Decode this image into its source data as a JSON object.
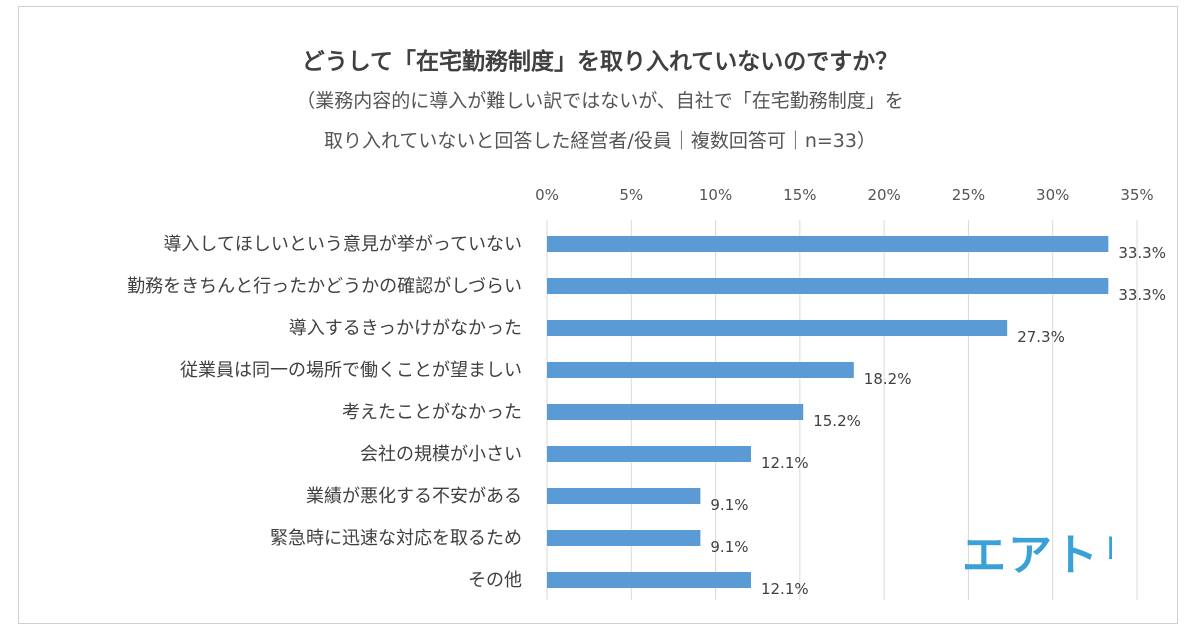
{
  "title": "どうして「在宅勤務制度」を取り入れていないのですか？",
  "subtitle_line1": "（業務内容的に導入が難しい訳ではないが、自社で「在宅勤務制度」を",
  "subtitle_line2": "取り入れていないと回答した経営者/役員｜複数回答可｜n=33）",
  "logo_text": "エアトリ",
  "colors": {
    "bar": "#5b9bd5",
    "grid": "#d9d9d9"
  },
  "chart_data": {
    "type": "bar",
    "orientation": "horizontal",
    "categories": [
      "導入してほしいという意見が挙がっていない",
      "勤務をきちんと行ったかどうかの確認がしづらい",
      "導入するきっかけがなかった",
      "従業員は同一の場所で働くことが望ましい",
      "考えたことがなかった",
      "会社の規模が小さい",
      "業績が悪化する不安がある",
      "緊急時に迅速な対応を取るため",
      "その他"
    ],
    "values": [
      33.3,
      33.3,
      27.3,
      18.2,
      15.2,
      12.1,
      9.1,
      9.1,
      12.1
    ],
    "value_labels": [
      "33.3%",
      "33.3%",
      "27.3%",
      "18.2%",
      "15.2%",
      "12.1%",
      "9.1%",
      "9.1%",
      "12.1%"
    ],
    "xlim": [
      0,
      35
    ],
    "ticks": [
      0,
      5,
      10,
      15,
      20,
      25,
      30,
      35
    ],
    "tick_labels": [
      "0%",
      "5%",
      "10%",
      "15%",
      "20%",
      "25%",
      "30%",
      "35%"
    ],
    "axis_position": "top",
    "grid": true,
    "legend": "none"
  }
}
